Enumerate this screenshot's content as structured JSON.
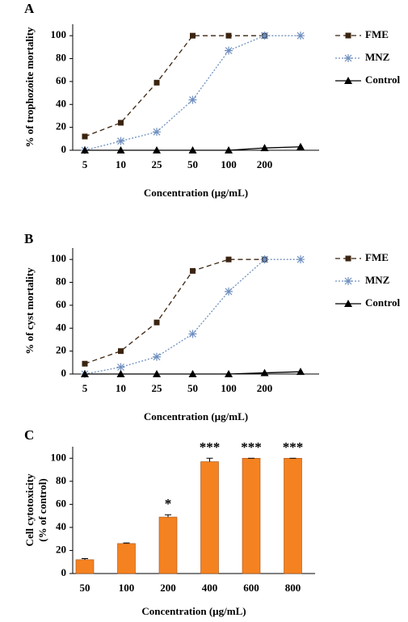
{
  "chart_data": [
    {
      "type": "line",
      "panel_label": "A",
      "xlabel": "Concentration (µg/mL)",
      "ylabel": "% of trophozoite mortality",
      "categories": [
        "5",
        "10",
        "25",
        "50",
        "100",
        "200",
        null
      ],
      "ylim": [
        0,
        110
      ],
      "yticks": [
        0,
        20,
        40,
        60,
        80,
        100
      ],
      "legend": "right",
      "series": [
        {
          "name": "FME",
          "color": "#3b2410",
          "marker": "square",
          "linestyle": "dashed",
          "values": [
            12,
            24,
            59,
            100,
            100,
            100,
            null
          ]
        },
        {
          "name": "MNZ",
          "color": "#6f8fbf",
          "marker": "star",
          "linestyle": "dotted",
          "values": [
            0,
            8,
            16,
            44,
            87,
            100,
            100
          ]
        },
        {
          "name": "Control",
          "color": "#000000",
          "marker": "triangle",
          "linestyle": "solid",
          "values": [
            0,
            0,
            0,
            0,
            0,
            2,
            3
          ]
        }
      ]
    },
    {
      "type": "line",
      "panel_label": "B",
      "xlabel": "Concentration (µg/mL)",
      "ylabel": "% of cyst mortality",
      "categories": [
        "5",
        "10",
        "25",
        "50",
        "100",
        "200",
        null
      ],
      "ylim": [
        0,
        110
      ],
      "yticks": [
        0,
        20,
        40,
        60,
        80,
        100
      ],
      "legend": "right",
      "series": [
        {
          "name": "FME",
          "color": "#3b2410",
          "marker": "square",
          "linestyle": "dashed",
          "values": [
            9,
            20,
            45,
            90,
            100,
            100,
            null
          ]
        },
        {
          "name": "MNZ",
          "color": "#6f8fbf",
          "marker": "star",
          "linestyle": "dotted",
          "values": [
            0,
            6,
            15,
            35,
            72,
            100,
            100
          ]
        },
        {
          "name": "Control",
          "color": "#000000",
          "marker": "triangle",
          "linestyle": "solid",
          "values": [
            0,
            0,
            0,
            0,
            0,
            1,
            2
          ]
        }
      ]
    },
    {
      "type": "bar",
      "panel_label": "C",
      "xlabel": "Concentration (µg/mL)",
      "ylabel": [
        "Cell cytotoxicity",
        "(% of control)"
      ],
      "categories": [
        "50",
        "100",
        "200",
        "400",
        "600",
        "800"
      ],
      "values": [
        12,
        26,
        49,
        97,
        100,
        100
      ],
      "errors": [
        1,
        0.5,
        2,
        3,
        0,
        0
      ],
      "annotations": [
        null,
        null,
        "*",
        "***",
        "***",
        "***"
      ],
      "color": "#f58220",
      "ylim": [
        0,
        110
      ],
      "yticks": [
        0,
        20,
        40,
        60,
        80,
        100
      ]
    }
  ]
}
